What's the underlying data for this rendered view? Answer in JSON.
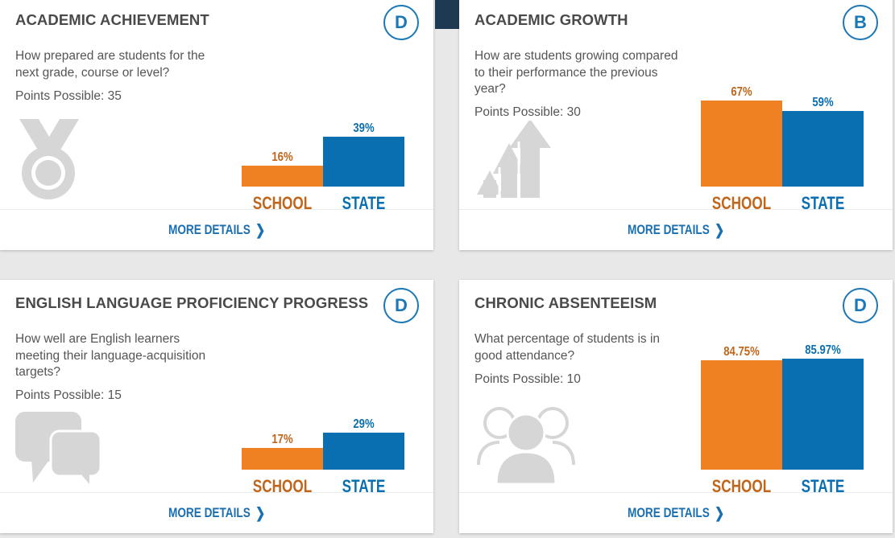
{
  "cards": [
    {
      "title": "ACADEMIC ACHIEVEMENT",
      "grade": "D",
      "description": "How prepared are students for the next grade, course or level?",
      "points": "Points Possible: 35",
      "icon": "medal-icon",
      "school_label": "16%",
      "state_label": "39%",
      "school_category": "SCHOOL",
      "state_category": "STATE",
      "more_label": "MORE DETAILS"
    },
    {
      "title": "ACADEMIC GROWTH",
      "grade": "B",
      "description": "How are students growing compared to their performance the previous year?",
      "points": "Points Possible: 30",
      "icon": "growth-arrows-icon",
      "school_label": "67%",
      "state_label": "59%",
      "school_category": "SCHOOL",
      "state_category": "STATE",
      "more_label": "MORE DETAILS"
    },
    {
      "title": "ENGLISH LANGUAGE PROFICIENCY PROGRESS",
      "grade": "D",
      "description": "How well are English learners meeting their language-acquisition targets?",
      "points": "Points Possible: 15",
      "icon": "speech-bubbles-icon",
      "school_label": "17%",
      "state_label": "29%",
      "school_category": "SCHOOL",
      "state_category": "STATE",
      "more_label": "MORE DETAILS"
    },
    {
      "title": "CHRONIC ABSENTEEISM",
      "grade": "D",
      "description": "What percentage of students is in good attendance?",
      "points": "Points Possible: 10",
      "icon": "group-people-icon",
      "school_label": "84.75%",
      "state_label": "85.97%",
      "school_category": "SCHOOL",
      "state_category": "STATE",
      "more_label": "MORE DETAILS"
    }
  ],
  "colors": {
    "school": "#f08122",
    "state": "#0a6fb1",
    "grade": "#1a78b8"
  },
  "chart_data": [
    {
      "type": "bar",
      "categories": [
        "SCHOOL",
        "STATE"
      ],
      "values": [
        16,
        39
      ]
    },
    {
      "type": "bar",
      "categories": [
        "SCHOOL",
        "STATE"
      ],
      "values": [
        67,
        59
      ]
    },
    {
      "type": "bar",
      "categories": [
        "SCHOOL",
        "STATE"
      ],
      "values": [
        17,
        29
      ]
    },
    {
      "type": "bar",
      "categories": [
        "SCHOOL",
        "STATE"
      ],
      "values": [
        84.75,
        85.97
      ]
    }
  ]
}
